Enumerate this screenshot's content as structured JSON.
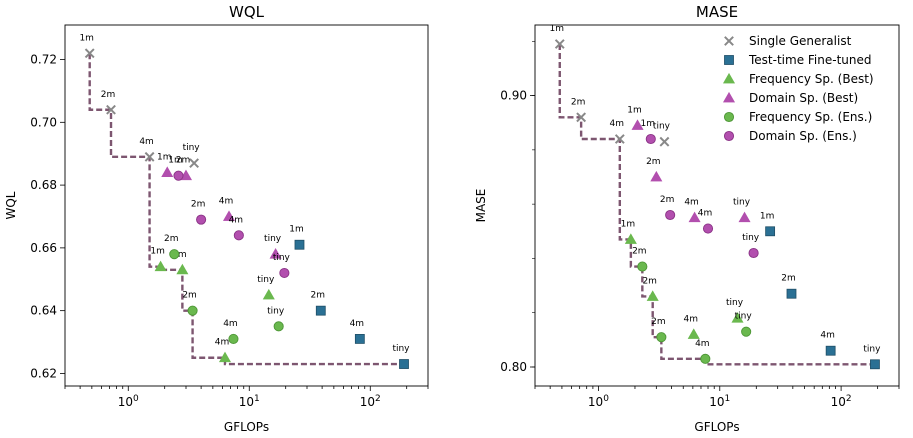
{
  "chart_data": [
    {
      "type": "scatter",
      "title": "WQL",
      "xlabel": "GFLOPs",
      "ylabel": "WQL",
      "xscale": "log",
      "xlim": [
        0.3,
        300
      ],
      "ylim": [
        0.616,
        0.731
      ],
      "x_ticks": [
        {
          "value": 1,
          "base": "10",
          "exp": "0"
        },
        {
          "value": 10,
          "base": "10",
          "exp": "1"
        },
        {
          "value": 100,
          "base": "10",
          "exp": "2"
        }
      ],
      "y_ticks": [
        {
          "value": 0.62,
          "label": "0.62"
        },
        {
          "value": 0.64,
          "label": "0.64"
        },
        {
          "value": 0.66,
          "label": "0.66"
        },
        {
          "value": 0.68,
          "label": "0.68"
        },
        {
          "value": 0.7,
          "label": "0.70"
        },
        {
          "value": 0.72,
          "label": "0.72"
        }
      ],
      "series": [
        {
          "name": "Single Generalist",
          "marker": "x",
          "color": "#888888",
          "points": [
            {
              "x": 0.48,
              "y": 0.722,
              "label": "1m"
            },
            {
              "x": 0.72,
              "y": 0.704,
              "label": "2m"
            },
            {
              "x": 1.5,
              "y": 0.689,
              "label": "4m"
            },
            {
              "x": 3.5,
              "y": 0.687,
              "label": "tiny"
            }
          ]
        },
        {
          "name": "Test-time Fine-tuned",
          "marker": "square",
          "color": "#2a7094",
          "points": [
            {
              "x": 26,
              "y": 0.661,
              "label": "1m"
            },
            {
              "x": 39,
              "y": 0.64,
              "label": "2m"
            },
            {
              "x": 82,
              "y": 0.631,
              "label": "4m"
            },
            {
              "x": 190,
              "y": 0.623,
              "label": "tiny"
            }
          ]
        },
        {
          "name": "Frequency Sp. (Best)",
          "marker": "triangle",
          "color": "#6ab84e",
          "points": [
            {
              "x": 1.85,
              "y": 0.654,
              "label": "1m"
            },
            {
              "x": 2.8,
              "y": 0.653,
              "label": "2m"
            },
            {
              "x": 6.3,
              "y": 0.625,
              "label": "4m"
            },
            {
              "x": 14.5,
              "y": 0.645,
              "label": "tiny"
            }
          ]
        },
        {
          "name": "Domain Sp. (Best)",
          "marker": "triangle",
          "color": "#b24fae",
          "points": [
            {
              "x": 2.1,
              "y": 0.684,
              "label": "1m"
            },
            {
              "x": 3.0,
              "y": 0.683,
              "label": "2m"
            },
            {
              "x": 6.8,
              "y": 0.67,
              "label": "4m"
            },
            {
              "x": 16.5,
              "y": 0.658,
              "label": "tiny"
            }
          ]
        },
        {
          "name": "Frequency Sp. (Ens.)",
          "marker": "circle",
          "color": "#6ab84e",
          "points": [
            {
              "x": 2.4,
              "y": 0.658,
              "label": "2m"
            },
            {
              "x": 3.4,
              "y": 0.64,
              "label": "2m"
            },
            {
              "x": 7.4,
              "y": 0.631,
              "label": "4m"
            },
            {
              "x": 17.5,
              "y": 0.635,
              "label": "tiny"
            }
          ]
        },
        {
          "name": "Domain Sp. (Ens.)",
          "marker": "circle",
          "color": "#b24fae",
          "points": [
            {
              "x": 2.6,
              "y": 0.683,
              "label": "1m"
            },
            {
              "x": 4.0,
              "y": 0.669,
              "label": "2m"
            },
            {
              "x": 8.2,
              "y": 0.664,
              "label": "4m"
            },
            {
              "x": 19.5,
              "y": 0.652,
              "label": "tiny"
            }
          ]
        }
      ],
      "pareto_front": [
        {
          "x": 0.48,
          "y": 0.722
        },
        {
          "x": 0.72,
          "y": 0.704
        },
        {
          "x": 1.5,
          "y": 0.689
        },
        {
          "x": 1.85,
          "y": 0.654
        },
        {
          "x": 2.8,
          "y": 0.653
        },
        {
          "x": 3.4,
          "y": 0.64
        },
        {
          "x": 6.3,
          "y": 0.625
        },
        {
          "x": 190,
          "y": 0.623
        }
      ]
    },
    {
      "type": "scatter",
      "title": "MASE",
      "xlabel": "GFLOPs",
      "ylabel": "MASE",
      "xscale": "log",
      "xlim": [
        0.3,
        300
      ],
      "ylim": [
        0.793,
        0.926
      ],
      "x_ticks": [
        {
          "value": 1,
          "base": "10",
          "exp": "0"
        },
        {
          "value": 10,
          "base": "10",
          "exp": "1"
        },
        {
          "value": 100,
          "base": "10",
          "exp": "2"
        }
      ],
      "y_ticks": [
        {
          "value": 0.8,
          "label": "0.80"
        },
        {
          "value": 0.9,
          "label": "0.90"
        }
      ],
      "legend": {
        "placement": "top-right"
      },
      "series": [
        {
          "name": "Single Generalist",
          "marker": "x",
          "color": "#888888",
          "points": [
            {
              "x": 0.48,
              "y": 0.919,
              "label": "1m"
            },
            {
              "x": 0.72,
              "y": 0.892,
              "label": "2m"
            },
            {
              "x": 1.5,
              "y": 0.884,
              "label": "4m"
            },
            {
              "x": 3.5,
              "y": 0.883,
              "label": "tiny"
            }
          ]
        },
        {
          "name": "Test-time Fine-tuned",
          "marker": "square",
          "color": "#2a7094",
          "points": [
            {
              "x": 26,
              "y": 0.85,
              "label": "1m"
            },
            {
              "x": 39,
              "y": 0.827,
              "label": "2m"
            },
            {
              "x": 82,
              "y": 0.806,
              "label": "4m"
            },
            {
              "x": 190,
              "y": 0.801,
              "label": "tiny"
            }
          ]
        },
        {
          "name": "Frequency Sp. (Best)",
          "marker": "triangle",
          "color": "#6ab84e",
          "points": [
            {
              "x": 1.85,
              "y": 0.847,
              "label": "1m"
            },
            {
              "x": 2.8,
              "y": 0.826,
              "label": "2m"
            },
            {
              "x": 6.1,
              "y": 0.812,
              "label": "4m"
            },
            {
              "x": 14,
              "y": 0.818,
              "label": "tiny"
            }
          ]
        },
        {
          "name": "Domain Sp. (Best)",
          "marker": "triangle",
          "color": "#b24fae",
          "points": [
            {
              "x": 2.1,
              "y": 0.889,
              "label": "1m"
            },
            {
              "x": 3.0,
              "y": 0.87,
              "label": "2m"
            },
            {
              "x": 6.2,
              "y": 0.855,
              "label": "4m"
            },
            {
              "x": 16,
              "y": 0.855,
              "label": "tiny"
            }
          ]
        },
        {
          "name": "Frequency Sp. (Ens.)",
          "marker": "circle",
          "color": "#6ab84e",
          "points": [
            {
              "x": 2.3,
              "y": 0.837,
              "label": "2m"
            },
            {
              "x": 3.3,
              "y": 0.811,
              "label": "2m"
            },
            {
              "x": 7.6,
              "y": 0.803,
              "label": "4m"
            },
            {
              "x": 16.5,
              "y": 0.813,
              "label": "tiny"
            }
          ]
        },
        {
          "name": "Domain Sp. (Ens.)",
          "marker": "circle",
          "color": "#b24fae",
          "points": [
            {
              "x": 2.7,
              "y": 0.884,
              "label": "1m"
            },
            {
              "x": 3.9,
              "y": 0.856,
              "label": "2m"
            },
            {
              "x": 8.0,
              "y": 0.851,
              "label": "4m"
            },
            {
              "x": 19,
              "y": 0.842,
              "label": "tiny"
            }
          ]
        }
      ],
      "pareto_front": [
        {
          "x": 0.48,
          "y": 0.919
        },
        {
          "x": 0.72,
          "y": 0.892
        },
        {
          "x": 1.5,
          "y": 0.884
        },
        {
          "x": 1.85,
          "y": 0.847
        },
        {
          "x": 2.3,
          "y": 0.837
        },
        {
          "x": 2.8,
          "y": 0.826
        },
        {
          "x": 3.3,
          "y": 0.811
        },
        {
          "x": 7.6,
          "y": 0.803
        },
        {
          "x": 190,
          "y": 0.801
        }
      ]
    }
  ],
  "style": {
    "pareto_color": "#7d5670",
    "axis_color": "#000000"
  }
}
